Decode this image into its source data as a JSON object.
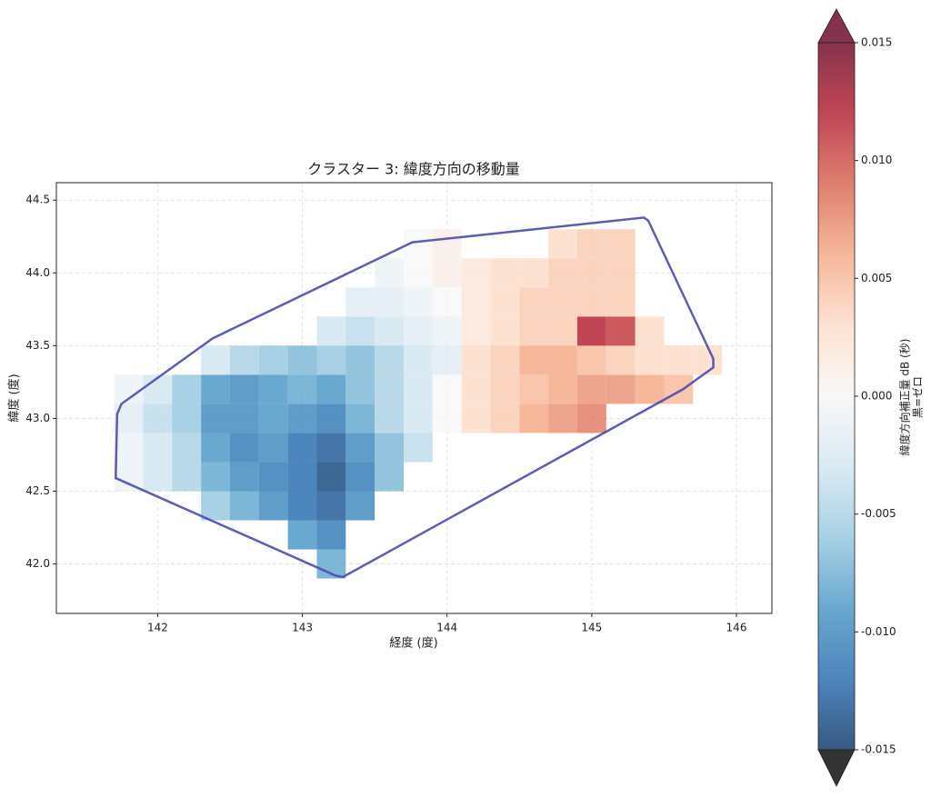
{
  "chart_data": {
    "type": "heatmap",
    "title": "クラスター 3: 緯度方向の移動量",
    "xlabel": "経度 (度)",
    "ylabel": "緯度 (度)",
    "x": [
      141.8,
      142,
      142.2,
      142.4,
      142.6,
      142.8,
      143,
      143.2,
      143.4,
      143.6,
      143.8,
      144,
      144.2,
      144.4,
      144.6,
      144.8,
      145,
      145.2,
      145.4,
      145.6,
      145.8
    ],
    "y": [
      42,
      42.2,
      42.4,
      42.6,
      42.8,
      43,
      43.2,
      43.4,
      43.6,
      43.8,
      44,
      44.2
    ],
    "values": [
      [
        null,
        null,
        null,
        null,
        null,
        null,
        null,
        -0.008,
        null,
        null,
        null,
        null,
        null,
        null,
        null,
        null,
        null,
        null,
        null,
        null,
        null
      ],
      [
        null,
        null,
        null,
        null,
        null,
        null,
        -0.009,
        -0.011,
        null,
        null,
        null,
        null,
        null,
        null,
        null,
        null,
        null,
        null,
        null,
        null,
        null
      ],
      [
        null,
        null,
        null,
        -0.006,
        -0.008,
        -0.01,
        -0.012,
        -0.013,
        -0.01,
        null,
        null,
        null,
        null,
        null,
        null,
        null,
        null,
        null,
        null,
        null,
        null
      ],
      [
        -0.001,
        -0.003,
        -0.005,
        -0.008,
        -0.01,
        -0.011,
        -0.012,
        -0.014,
        -0.011,
        -0.007,
        null,
        null,
        null,
        null,
        null,
        null,
        null,
        null,
        null,
        null,
        null
      ],
      [
        -0.001,
        -0.003,
        -0.005,
        -0.009,
        -0.011,
        -0.01,
        -0.012,
        -0.013,
        -0.01,
        -0.007,
        -0.004,
        null,
        null,
        null,
        null,
        null,
        null,
        null,
        null,
        null,
        null
      ],
      [
        -0.002,
        -0.004,
        -0.006,
        -0.01,
        -0.01,
        -0.009,
        -0.01,
        -0.011,
        -0.008,
        -0.005,
        -0.003,
        0.0,
        0.003,
        0.004,
        0.006,
        0.007,
        0.008,
        null,
        null,
        null,
        null
      ],
      [
        -0.001,
        -0.003,
        -0.006,
        -0.009,
        -0.01,
        -0.009,
        -0.008,
        -0.009,
        -0.007,
        -0.005,
        -0.003,
        0.0,
        0.003,
        0.004,
        0.005,
        0.006,
        0.007,
        0.007,
        0.006,
        0.005,
        null
      ],
      [
        null,
        null,
        null,
        -0.003,
        -0.005,
        -0.006,
        -0.007,
        -0.006,
        -0.007,
        -0.005,
        -0.003,
        -0.002,
        0.003,
        0.004,
        0.006,
        0.006,
        0.005,
        0.004,
        0.003,
        0.003,
        0.003
      ],
      [
        null,
        null,
        null,
        null,
        null,
        null,
        null,
        -0.003,
        -0.004,
        -0.003,
        -0.002,
        -0.001,
        0.002,
        0.003,
        0.004,
        0.004,
        0.012,
        0.011,
        0.003,
        null,
        null
      ],
      [
        null,
        null,
        null,
        null,
        null,
        null,
        null,
        null,
        -0.002,
        -0.002,
        -0.001,
        0.0,
        0.002,
        0.003,
        0.004,
        0.004,
        0.004,
        0.004,
        null,
        null,
        null
      ],
      [
        null,
        null,
        null,
        null,
        null,
        null,
        null,
        null,
        null,
        -0.001,
        0.0,
        0.001,
        0.002,
        0.003,
        0.003,
        0.004,
        0.004,
        0.004,
        null,
        null,
        null
      ],
      [
        null,
        null,
        null,
        null,
        null,
        null,
        null,
        null,
        null,
        null,
        0.0,
        0.001,
        null,
        null,
        null,
        0.003,
        0.004,
        0.004,
        null,
        null,
        null
      ]
    ],
    "xlim": [
      141.3,
      146.245
    ],
    "ylim": [
      41.66,
      44.62
    ],
    "xticks": [
      142,
      143,
      144,
      145,
      146
    ],
    "yticks": [
      {
        "value": 42,
        "label": "42.0"
      },
      42.5,
      {
        "value": 43,
        "label": "43.0"
      },
      43.5,
      {
        "value": 44,
        "label": "44.0"
      },
      44.5
    ],
    "grid": true,
    "boundary": {
      "color": "#4b4bab",
      "x": [
        141.71,
        141.72,
        141.75,
        142.38,
        143.76,
        145.36,
        145.39,
        145.84,
        145.84,
        145.63,
        143.28,
        143.23
      ],
      "y": [
        42.59,
        43.03,
        43.1,
        43.55,
        44.21,
        44.38,
        44.36,
        43.41,
        43.35,
        43.2,
        41.91,
        41.92
      ]
    },
    "colormap": [
      "#053061",
      "#2166ac",
      "#4393c3",
      "#92c5de",
      "#d1e5f0",
      "#f7f7f7",
      "#fddbc7",
      "#f4a582",
      "#d6604d",
      "#b2182b",
      "#67001f"
    ],
    "over_color": "#67001f",
    "under_color": "#000000",
    "colorbar": {
      "label": "緯度方向補正量 dB (秒)",
      "sublabel": "黒=ゼロ",
      "clim": [
        -0.015,
        0.015
      ],
      "ticks": [
        0.015,
        {
          "value": 0.01,
          "label": "0.010"
        },
        0.005,
        {
          "value": 0,
          "label": "0.000"
        },
        -0.005,
        {
          "value": -0.01,
          "label": "-0.010"
        },
        -0.015
      ]
    }
  }
}
